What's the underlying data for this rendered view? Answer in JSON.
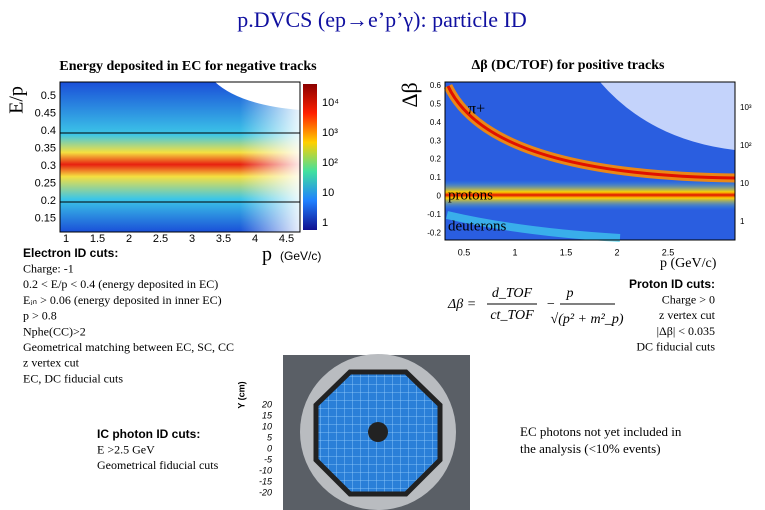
{
  "title": "p.DVCS (ep→e’p’γ): particle ID",
  "left_plot": {
    "title": "Energy deposited in EC for negative tracks",
    "y_label": "E/p",
    "y_ticks": [
      "0.5",
      "0.45",
      "0.4",
      "0.35",
      "0.3",
      "0.25",
      "0.2",
      "0.15"
    ],
    "x_ticks": [
      "1",
      "1.5",
      "2",
      "2.5",
      "3",
      "3.5",
      "4",
      "4.5"
    ],
    "x_label": "p",
    "x_unit": "(GeV/c)",
    "colorbar_ticks": [
      "10⁴",
      "10³",
      "10²",
      "10",
      "1"
    ]
  },
  "right_plot": {
    "title": "Δβ (DC/TOF) for positive tracks",
    "y_label": "Δβ",
    "y_ticks": [
      "0.6",
      "0.5",
      "0.4",
      "0.3",
      "0.2",
      "0.1",
      "0",
      "-0.1",
      "-0.2"
    ],
    "x_ticks": [
      "0.5",
      "1",
      "1.5",
      "2",
      "2.5"
    ],
    "x_label": "p (GeV/c)",
    "colorbar_ticks": [
      "10³",
      "10²",
      "10",
      "1"
    ],
    "annotations": [
      "π+",
      "protons",
      "deuterons"
    ]
  },
  "electron_cuts": {
    "heading": "Electron ID cuts:",
    "lines": [
      "Charge: -1",
      "0.2 < E/p < 0.4 (energy deposited in EC)",
      "Eᵢₙ > 0.06 (energy deposited in inner EC)",
      "p > 0.8",
      "Nphe(CC)>2",
      "Geometrical matching between EC, SC, CC",
      "z vertex cut",
      "EC, DC fiducial cuts"
    ]
  },
  "proton_cuts": {
    "heading": "Proton ID cuts:",
    "lines": [
      "Charge > 0",
      "z vertex cut",
      "|Δβ| < 0.035",
      "DC fiducial cuts"
    ]
  },
  "formula": {
    "lhs": "Δβ =",
    "num1": "d_TOF",
    "den1": "ct_TOF",
    "minus": "−",
    "num2": "p",
    "den2": "√(p² + m²_p)"
  },
  "ic_cuts": {
    "heading": "IC photon ID cuts:",
    "lines": [
      "E >2.5 GeV",
      "Geometrical fiducial cuts"
    ]
  },
  "photo_axis": {
    "label": "Y (cm)",
    "ticks": [
      "20",
      "15",
      "10",
      "5",
      "0",
      "-5",
      "-10",
      "-15",
      "-20"
    ]
  },
  "ec_note": [
    "EC photons  not yet included in",
    "the analysis (<10% events)"
  ]
}
